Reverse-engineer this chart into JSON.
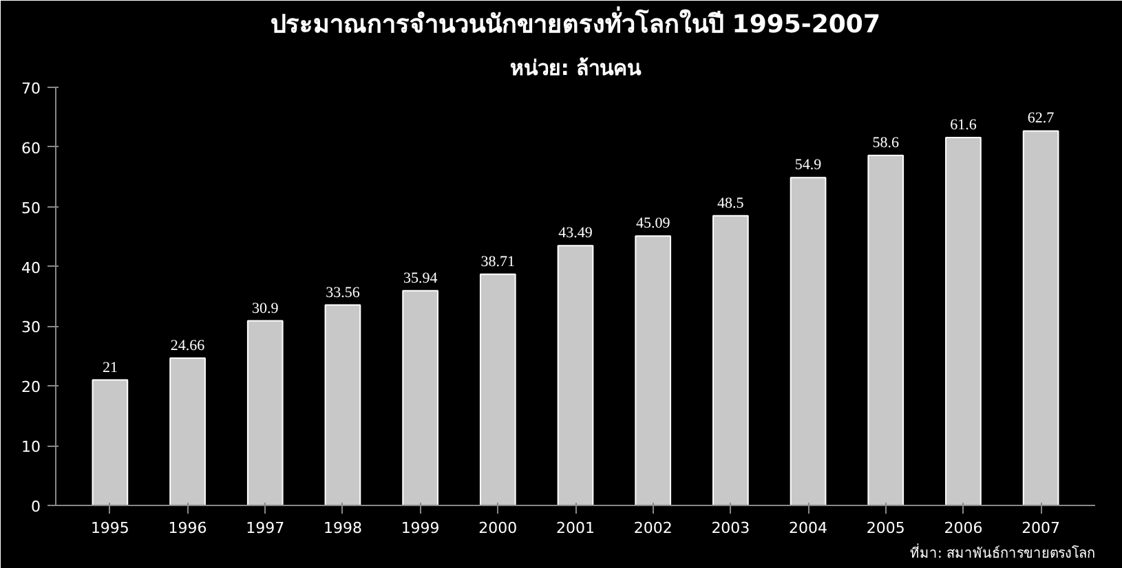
{
  "chart_data": {
    "type": "bar",
    "title": "ประมาณการจำนวนนักขายตรงทั่วโลกในปี 1995-2007",
    "subtitle": "หน่วย: ล้านคน",
    "categories": [
      "1995",
      "1996",
      "1997",
      "1998",
      "1999",
      "2000",
      "2001",
      "2002",
      "2003",
      "2004",
      "2005",
      "2006",
      "2007"
    ],
    "values": [
      21,
      24.66,
      30.9,
      33.56,
      35.94,
      38.71,
      43.49,
      45.09,
      48.5,
      54.9,
      58.6,
      61.6,
      62.7
    ],
    "color": "#c8c8c8",
    "ylim": [
      0,
      70
    ],
    "yticks": [
      0,
      10,
      20,
      30,
      40,
      50,
      60,
      70
    ],
    "data_labels": true,
    "grid": false,
    "annotations": [
      "ที่มา: สมาพันธ์การขายตรงโลก"
    ]
  }
}
